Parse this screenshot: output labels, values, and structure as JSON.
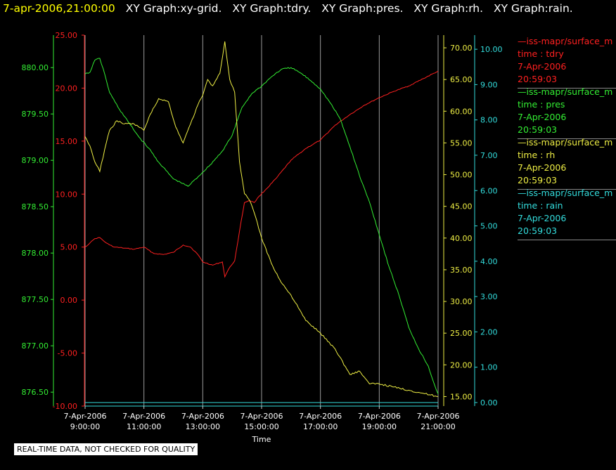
{
  "header": {
    "timestamp": "7-apr-2006,21:00:00",
    "graph_titles": [
      "XY Graph:xy-grid.",
      "XY Graph:tdry.",
      "XY Graph:pres.",
      "XY Graph:rh.",
      "XY Graph:rain."
    ]
  },
  "legend": [
    {
      "source": "—iss-mapr/surface_m",
      "field": "time : tdry",
      "date": "7-Apr-2006",
      "time": "20:59:03",
      "color": "#ff2020"
    },
    {
      "source": "—iss-mapr/surface_m",
      "field": "time : pres",
      "date": "7-Apr-2006",
      "time": "20:59:03",
      "color": "#33ee33"
    },
    {
      "source": "—iss-mapr/surface_m",
      "field": "time : rh",
      "date": "7-Apr-2006",
      "time": "20:59:03",
      "color": "#eeee44"
    },
    {
      "source": "—iss-mapr/surface_m",
      "field": "time : rain",
      "date": "7-Apr-2006",
      "time": "20:59:03",
      "color": "#33dddd"
    }
  ],
  "disclaimer": "REAL-TIME DATA, NOT CHECKED FOR QUALITY",
  "chart_data": {
    "type": "line",
    "xlabel": "Time",
    "x_ticks": [
      {
        "date": "7-Apr-2006",
        "time": "9:00:00"
      },
      {
        "date": "7-Apr-2006",
        "time": "11:00:00"
      },
      {
        "date": "7-Apr-2006",
        "time": "13:00:00"
      },
      {
        "date": "7-Apr-2006",
        "time": "15:00:00"
      },
      {
        "date": "7-Apr-2006",
        "time": "17:00:00"
      },
      {
        "date": "7-Apr-2006",
        "time": "19:00:00"
      },
      {
        "date": "7-Apr-2006",
        "time": "21:00:00"
      }
    ],
    "xlim": [
      "2006-04-07 09:00",
      "2006-04-07 21:00"
    ],
    "grid": "vertical",
    "axes": {
      "pres": {
        "color": "#33ee33",
        "ylim": [
          876.35,
          880.35
        ],
        "ticks": [
          "880.00",
          "879.50",
          "879.00",
          "878.50",
          "878.00",
          "877.50",
          "877.00",
          "876.50"
        ],
        "tick_values": [
          880.0,
          879.5,
          879.0,
          878.5,
          878.0,
          877.5,
          877.0,
          876.5
        ]
      },
      "tdry": {
        "color": "#ff2020",
        "ylim": [
          -10.0,
          25.0
        ],
        "ticks": [
          "25.00",
          "20.00",
          "15.00",
          "10.00",
          "5.00",
          "0.00",
          "-5.00",
          "-10.00"
        ],
        "tick_values": [
          25,
          20,
          15,
          10,
          5,
          0,
          -5,
          -10
        ]
      },
      "rh": {
        "color": "#eeee44",
        "ylim": [
          13.5,
          72.0
        ],
        "ticks": [
          "70.00",
          "65.00",
          "60.00",
          "55.00",
          "50.00",
          "45.00",
          "40.00",
          "35.00",
          "30.00",
          "25.00",
          "20.00",
          "15.00"
        ],
        "tick_values": [
          70,
          65,
          60,
          55,
          50,
          45,
          40,
          35,
          30,
          25,
          20,
          15
        ]
      },
      "rain": {
        "color": "#33dddd",
        "ylim": [
          -0.1,
          10.4
        ],
        "ticks": [
          "10.00",
          "9.00",
          "8.00",
          "7.00",
          "6.00",
          "5.00",
          "4.00",
          "3.00",
          "2.00",
          "1.00",
          "0.00"
        ],
        "tick_values": [
          10,
          9,
          8,
          7,
          6,
          5,
          4,
          3,
          2,
          1,
          0
        ]
      }
    },
    "series": [
      {
        "name": "tdry",
        "axis": "tdry",
        "color": "#ff2020",
        "x": [
          "2006-04-07 09:00",
          "2006-04-07 09:10",
          "2006-04-07 09:20",
          "2006-04-07 09:30",
          "2006-04-07 09:40",
          "2006-04-07 09:50",
          "2006-04-07 10:00",
          "2006-04-07 10:20",
          "2006-04-07 10:40",
          "2006-04-07 11:00",
          "2006-04-07 11:20",
          "2006-04-07 11:40",
          "2006-04-07 12:00",
          "2006-04-07 12:20",
          "2006-04-07 12:35",
          "2006-04-07 12:50",
          "2006-04-07 13:00",
          "2006-04-07 13:20",
          "2006-04-07 13:40",
          "2006-04-07 13:45",
          "2006-04-07 13:55",
          "2006-04-07 14:05",
          "2006-04-07 14:15",
          "2006-04-07 14:25",
          "2006-04-07 14:35",
          "2006-04-07 14:45",
          "2006-04-07 14:55",
          "2006-04-07 15:10",
          "2006-04-07 15:30",
          "2006-04-07 16:00",
          "2006-04-07 16:30",
          "2006-04-07 17:00",
          "2006-04-07 17:30",
          "2006-04-07 18:00",
          "2006-04-07 18:30",
          "2006-04-07 19:00",
          "2006-04-07 19:30",
          "2006-04-07 20:00",
          "2006-04-07 20:30",
          "2006-04-07 21:00"
        ],
        "values": [
          5.0,
          5.4,
          5.8,
          5.9,
          5.5,
          5.2,
          5.0,
          4.9,
          4.8,
          5.0,
          4.4,
          4.3,
          4.5,
          5.2,
          5.0,
          4.3,
          3.6,
          3.3,
          3.6,
          2.2,
          3.1,
          3.7,
          6.5,
          9.2,
          9.4,
          9.2,
          9.8,
          10.5,
          11.5,
          13.2,
          14.3,
          15.1,
          16.5,
          17.5,
          18.4,
          19.1,
          19.7,
          20.2,
          20.9,
          21.6
        ]
      },
      {
        "name": "pres",
        "axis": "pres",
        "color": "#33ee33",
        "x": [
          "2006-04-07 09:00",
          "2006-04-07 09:10",
          "2006-04-07 09:20",
          "2006-04-07 09:30",
          "2006-04-07 09:40",
          "2006-04-07 09:50",
          "2006-04-07 10:10",
          "2006-04-07 10:30",
          "2006-04-07 10:50",
          "2006-04-07 11:10",
          "2006-04-07 11:30",
          "2006-04-07 12:00",
          "2006-04-07 12:30",
          "2006-04-07 12:50",
          "2006-04-07 13:15",
          "2006-04-07 13:40",
          "2006-04-07 14:00",
          "2006-04-07 14:20",
          "2006-04-07 14:40",
          "2006-04-07 15:00",
          "2006-04-07 15:20",
          "2006-04-07 15:40",
          "2006-04-07 16:00",
          "2006-04-07 16:20",
          "2006-04-07 16:40",
          "2006-04-07 17:00",
          "2006-04-07 17:20",
          "2006-04-07 17:40",
          "2006-04-07 18:00",
          "2006-04-07 18:20",
          "2006-04-07 18:40",
          "2006-04-07 19:00",
          "2006-04-07 19:20",
          "2006-04-07 19:40",
          "2006-04-07 20:00",
          "2006-04-07 20:20",
          "2006-04-07 20:40",
          "2006-04-07 20:50",
          "2006-04-07 21:00"
        ],
        "values": [
          879.93,
          879.95,
          880.08,
          880.1,
          879.93,
          879.73,
          879.55,
          879.4,
          879.25,
          879.13,
          878.98,
          878.8,
          878.72,
          878.82,
          878.95,
          879.1,
          879.27,
          879.57,
          879.72,
          879.8,
          879.9,
          879.98,
          880.0,
          879.94,
          879.86,
          879.77,
          879.62,
          879.45,
          879.15,
          878.83,
          878.55,
          878.2,
          877.85,
          877.55,
          877.2,
          876.97,
          876.78,
          876.62,
          876.48
        ]
      },
      {
        "name": "rh",
        "axis": "rh",
        "color": "#eeee44",
        "x": [
          "2006-04-07 09:00",
          "2006-04-07 09:10",
          "2006-04-07 09:20",
          "2006-04-07 09:30",
          "2006-04-07 09:40",
          "2006-04-07 09:50",
          "2006-04-07 10:05",
          "2006-04-07 10:20",
          "2006-04-07 10:40",
          "2006-04-07 11:00",
          "2006-04-07 11:10",
          "2006-04-07 11:30",
          "2006-04-07 11:50",
          "2006-04-07 12:05",
          "2006-04-07 12:20",
          "2006-04-07 12:35",
          "2006-04-07 12:50",
          "2006-04-07 13:00",
          "2006-04-07 13:10",
          "2006-04-07 13:20",
          "2006-04-07 13:35",
          "2006-04-07 13:45",
          "2006-04-07 13:55",
          "2006-04-07 14:05",
          "2006-04-07 14:15",
          "2006-04-07 14:25",
          "2006-04-07 14:35",
          "2006-04-07 14:45",
          "2006-04-07 15:00",
          "2006-04-07 15:20",
          "2006-04-07 15:40",
          "2006-04-07 16:00",
          "2006-04-07 16:30",
          "2006-04-07 17:00",
          "2006-04-07 17:30",
          "2006-04-07 18:00",
          "2006-04-07 18:20",
          "2006-04-07 18:40",
          "2006-04-07 19:00",
          "2006-04-07 19:30",
          "2006-04-07 20:00",
          "2006-04-07 20:30",
          "2006-04-07 21:00"
        ],
        "values": [
          56.0,
          54.5,
          52.0,
          50.5,
          54.0,
          57.0,
          58.5,
          58.0,
          58.0,
          57.0,
          59.0,
          62.0,
          61.5,
          57.5,
          55.0,
          58.0,
          61.0,
          62.5,
          65.0,
          64.0,
          66.0,
          71.0,
          65.0,
          63.0,
          52.0,
          47.0,
          46.0,
          44.0,
          40.0,
          36.0,
          33.0,
          31.0,
          27.0,
          25.0,
          22.5,
          18.5,
          19.0,
          17.0,
          17.0,
          16.5,
          16.0,
          15.5,
          15.0
        ]
      },
      {
        "name": "rain",
        "axis": "rain",
        "color": "#33dddd",
        "x": [
          "2006-04-07 09:00",
          "2006-04-07 21:00"
        ],
        "values": [
          0.0,
          0.0
        ]
      }
    ]
  }
}
